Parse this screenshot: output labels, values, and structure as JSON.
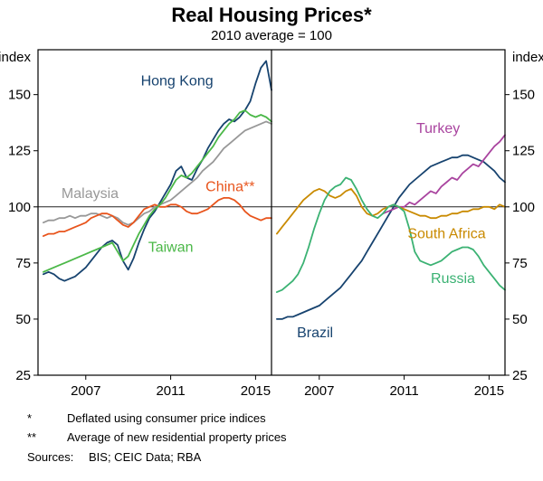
{
  "title": "Real Housing Prices*",
  "subtitle": "2010 average = 100",
  "chart_data": {
    "type": "line",
    "title": "Real Housing Prices*",
    "subtitle": "2010 average = 100",
    "y_axis_label": "index",
    "ylim": [
      25,
      170
    ],
    "yticks": [
      150,
      125,
      100,
      75,
      50,
      25
    ],
    "xlim": [
      2004.75,
      2015.75
    ],
    "xticks": [
      2007,
      2011,
      2015
    ],
    "reference_line": 100,
    "x_start": 2005.0,
    "x_step": 0.25,
    "grid": false,
    "legend_position": "inline-labels",
    "panels": [
      {
        "name": "left",
        "series": [
          {
            "name": "Hong Kong",
            "color": "#17436f",
            "values": [
              70,
              71,
              70,
              68,
              67,
              68,
              69,
              71,
              73,
              76,
              79,
              82,
              84,
              85,
              83,
              76,
              72,
              77,
              84,
              90,
              95,
              98,
              102,
              106,
              110,
              116,
              118,
              113,
              112,
              117,
              121,
              126,
              130,
              134,
              137,
              139,
              138,
              140,
              143,
              147,
              155,
              162,
              165,
              152
            ]
          },
          {
            "name": "Malaysia",
            "color": "#989898",
            "values": [
              93,
              94,
              94,
              95,
              95,
              96,
              95,
              96,
              96,
              97,
              97,
              96,
              95,
              96,
              95,
              93,
              92,
              93,
              95,
              97,
              98,
              100,
              101,
              102,
              103,
              105,
              107,
              109,
              111,
              113,
              116,
              118,
              120,
              123,
              126,
              128,
              130,
              132,
              134,
              135,
              136,
              137,
              138,
              137
            ]
          },
          {
            "name": "China**",
            "color": "#e8541c",
            "values": [
              87,
              88,
              88,
              89,
              89,
              90,
              91,
              92,
              93,
              95,
              96,
              97,
              97,
              96,
              94,
              92,
              91,
              93,
              96,
              99,
              100,
              101,
              100,
              100,
              101,
              101,
              100,
              98,
              97,
              97,
              98,
              99,
              101,
              103,
              104,
              104,
              103,
              101,
              98,
              96,
              95,
              94,
              95,
              95
            ]
          },
          {
            "name": "Taiwan",
            "color": "#4bb848",
            "values": [
              71,
              72,
              73,
              74,
              75,
              76,
              77,
              78,
              79,
              80,
              81,
              82,
              83,
              84,
              80,
              76,
              78,
              83,
              88,
              92,
              96,
              99,
              101,
              104,
              108,
              112,
              114,
              113,
              115,
              118,
              121,
              124,
              127,
              131,
              134,
              137,
              139,
              142,
              143,
              141,
              140,
              141,
              140,
              138
            ]
          }
        ],
        "labels": [
          {
            "text": "Hong Kong",
            "x": 2011.3,
            "y": 154,
            "color": "#17436f"
          },
          {
            "text": "Malaysia",
            "x": 2007.2,
            "y": 104,
            "color": "#989898"
          },
          {
            "text": "China**",
            "x": 2013.8,
            "y": 107,
            "color": "#e8541c"
          },
          {
            "text": "Taiwan",
            "x": 2011.0,
            "y": 80,
            "color": "#4bb848"
          }
        ]
      },
      {
        "name": "right",
        "series": [
          {
            "name": "Brazil",
            "color": "#17436f",
            "values": [
              50,
              50,
              51,
              51,
              52,
              53,
              54,
              55,
              56,
              58,
              60,
              62,
              64,
              67,
              70,
              73,
              76,
              80,
              84,
              88,
              92,
              96,
              100,
              104,
              107,
              110,
              112,
              114,
              116,
              118,
              119,
              120,
              121,
              122,
              122,
              123,
              123,
              122,
              121,
              120,
              118,
              116,
              113,
              111
            ]
          },
          {
            "name": "Turkey",
            "color": "#a9449f",
            "values": [
              null,
              null,
              null,
              null,
              null,
              null,
              null,
              null,
              null,
              null,
              null,
              null,
              null,
              null,
              null,
              null,
              null,
              null,
              null,
              null,
              97,
              98,
              99,
              100,
              100,
              102,
              101,
              103,
              105,
              107,
              106,
              109,
              111,
              113,
              112,
              115,
              117,
              119,
              118,
              121,
              124,
              127,
              129,
              132
            ]
          },
          {
            "name": "South Africa",
            "color": "#c98a00",
            "values": [
              88,
              91,
              94,
              97,
              100,
              103,
              105,
              107,
              108,
              107,
              105,
              104,
              105,
              107,
              108,
              105,
              100,
              97,
              96,
              97,
              99,
              100,
              101,
              100,
              99,
              98,
              97,
              96,
              96,
              95,
              95,
              96,
              96,
              97,
              97,
              98,
              98,
              99,
              99,
              100,
              100,
              99,
              101,
              100
            ]
          },
          {
            "name": "Russia",
            "color": "#3bb273",
            "values": [
              62,
              63,
              65,
              67,
              70,
              75,
              82,
              90,
              97,
              103,
              107,
              109,
              110,
              113,
              112,
              108,
              103,
              99,
              96,
              95,
              97,
              100,
              101,
              100,
              98,
              90,
              80,
              76,
              75,
              74,
              75,
              76,
              78,
              80,
              81,
              82,
              82,
              81,
              78,
              74,
              71,
              68,
              65,
              63
            ]
          }
        ],
        "labels": [
          {
            "text": "Turkey",
            "x": 2012.6,
            "y": 133,
            "color": "#a9449f"
          },
          {
            "text": "South Africa",
            "x": 2013.0,
            "y": 86,
            "color": "#c98a00"
          },
          {
            "text": "Russia",
            "x": 2013.3,
            "y": 66,
            "color": "#3bb273"
          },
          {
            "text": "Brazil",
            "x": 2006.8,
            "y": 42,
            "color": "#17436f"
          }
        ]
      }
    ]
  },
  "footnotes": [
    {
      "marker": "*",
      "text": "Deflated using consumer price indices"
    },
    {
      "marker": "**",
      "text": "Average of new residential property prices"
    }
  ],
  "sources": {
    "label": "Sources:",
    "text": "BIS; CEIC Data; RBA"
  }
}
